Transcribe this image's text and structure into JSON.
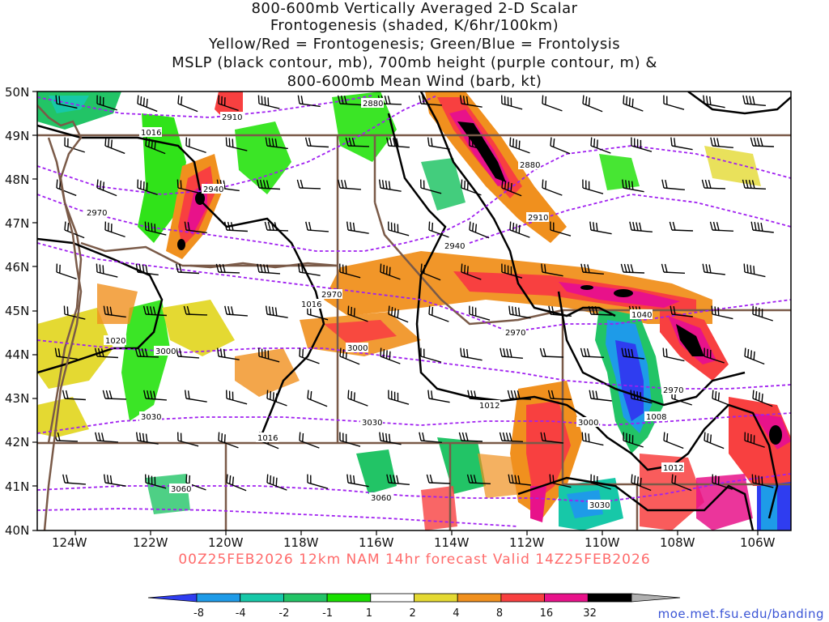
{
  "title_lines": [
    "800-600mb Vertically Averaged 2-D Scalar",
    "Frontogenesis (shaded, K/6hr/100km)",
    "Yellow/Red = Frontogenesis;  Green/Blue = Frontolysis",
    "MSLP (black contour, mb), 700mb height (purple contour, m) &",
    "800-600mb Mean Wind (barb, kt)"
  ],
  "forecast_label": "00Z25FEB2026 12km NAM 14hr forecast Valid 14Z25FEB2026",
  "source_url": "moe.met.fsu.edu/banding",
  "lat_labels": [
    "50N",
    "49N",
    "48N",
    "47N",
    "46N",
    "45N",
    "44N",
    "43N",
    "42N",
    "41N",
    "40N"
  ],
  "lon_labels": [
    "124W",
    "122W",
    "120W",
    "118W",
    "116W",
    "114W",
    "112W",
    "110W",
    "108W",
    "106W"
  ],
  "colorbar": {
    "ticks": [
      "-8",
      "-4",
      "-2",
      "-1",
      "1",
      "2",
      "4",
      "8",
      "16",
      "32"
    ],
    "colors": [
      "#2f3df0",
      "#1e9be8",
      "#17c8a8",
      "#22c466",
      "#19e000",
      "#ffffff",
      "#e4d932",
      "#f0901e",
      "#f84040",
      "#e8128a",
      "#000000",
      "#b0b0b0"
    ]
  },
  "colors": {
    "mslp_contour": "#000000",
    "height_contour": "#a020f0",
    "state_borders": "#7a5a48",
    "frontogenesis_weak": "#e4d932",
    "frontogenesis_moderate": "#f0901e",
    "frontogenesis_strong": "#f84040",
    "frontogenesis_extreme": "#e8128a",
    "frontolysis_weak": "#19e000",
    "frontolysis_strong": "#2f3df0"
  },
  "mslp_labels": [
    "1016",
    "1016",
    "1020",
    "1016",
    "1012",
    "1008",
    "1012",
    "1040"
  ],
  "height_labels": [
    "2910",
    "2880",
    "2880",
    "2940",
    "2970",
    "2910",
    "2940",
    "2970",
    "2970",
    "3000",
    "3000",
    "3030",
    "3030",
    "3060",
    "3060",
    "3000",
    "3030",
    "2970"
  ]
}
